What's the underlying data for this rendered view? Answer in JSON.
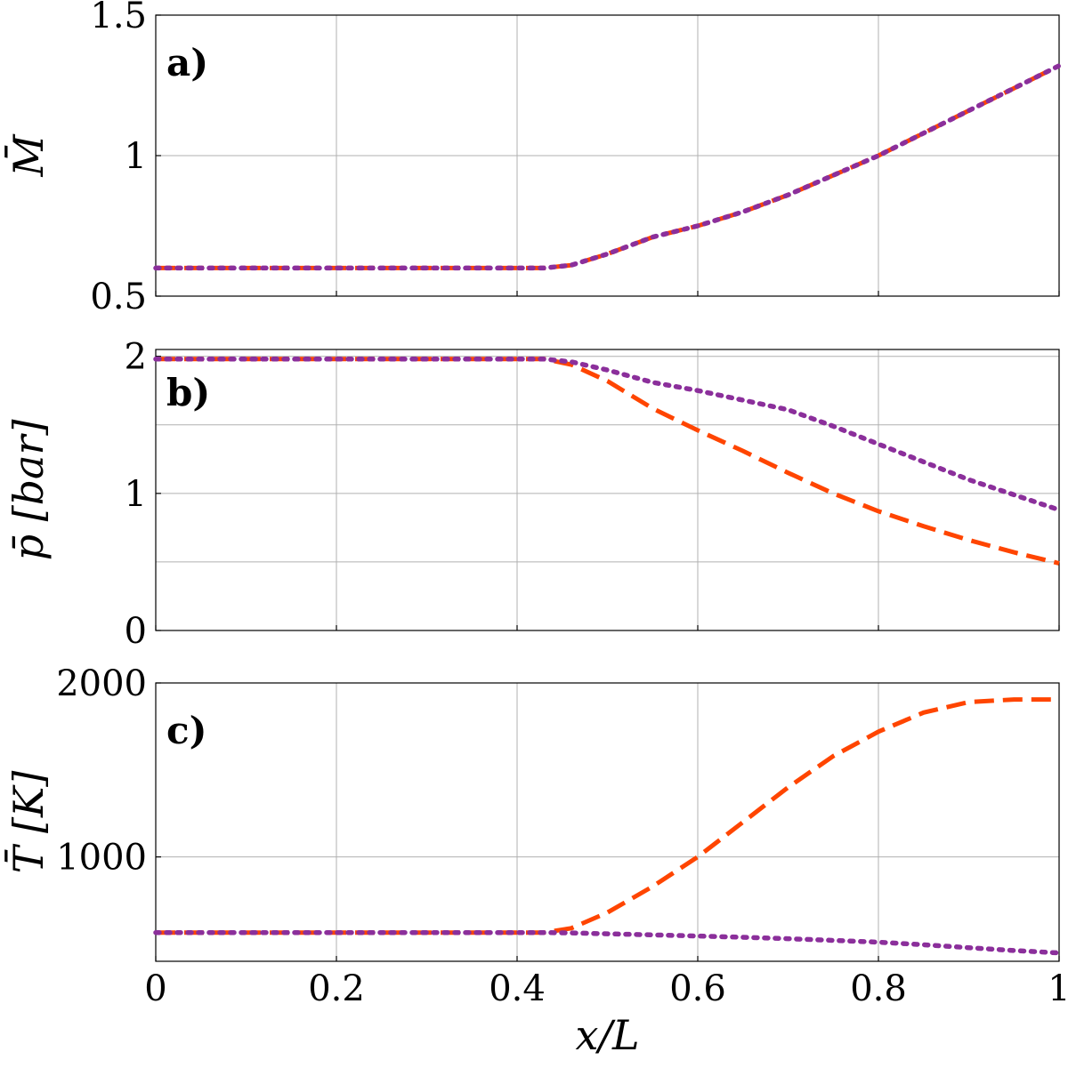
{
  "chart_data": [
    {
      "type": "line",
      "panel_label": "a)",
      "ylabel": "M̄",
      "xlabel": "",
      "xlim": [
        0,
        1
      ],
      "ylim": [
        0.5,
        1.5
      ],
      "xticks": [
        0,
        0.2,
        0.4,
        0.6,
        0.8,
        1
      ],
      "xtick_labels": [
        "",
        "",
        "",
        "",
        "",
        ""
      ],
      "yticks": [
        0.5,
        1,
        1.5
      ],
      "ytick_labels": [
        "0.5",
        "1",
        "1.5"
      ],
      "grid": true,
      "series": [
        {
          "style": "dashed",
          "color": "#ff4500",
          "x": [
            0,
            0.1,
            0.2,
            0.3,
            0.4,
            0.43,
            0.46,
            0.5,
            0.55,
            0.6,
            0.65,
            0.7,
            0.75,
            0.8,
            0.85,
            0.9,
            0.95,
            1.0
          ],
          "y": [
            0.6,
            0.6,
            0.6,
            0.6,
            0.6,
            0.6,
            0.61,
            0.65,
            0.71,
            0.75,
            0.8,
            0.86,
            0.93,
            1.0,
            1.08,
            1.16,
            1.24,
            1.32
          ]
        },
        {
          "style": "dotted",
          "color": "#8b2f9b",
          "x": [
            0,
            0.1,
            0.2,
            0.3,
            0.4,
            0.43,
            0.46,
            0.5,
            0.55,
            0.6,
            0.65,
            0.7,
            0.75,
            0.8,
            0.85,
            0.9,
            0.95,
            1.0
          ],
          "y": [
            0.6,
            0.6,
            0.6,
            0.6,
            0.6,
            0.6,
            0.61,
            0.65,
            0.71,
            0.75,
            0.8,
            0.86,
            0.93,
            1.0,
            1.08,
            1.16,
            1.24,
            1.32
          ]
        }
      ]
    },
    {
      "type": "line",
      "panel_label": "b)",
      "ylabel": "p̄ [bar]",
      "xlabel": "",
      "xlim": [
        0,
        1
      ],
      "ylim": [
        0,
        2.05
      ],
      "xticks": [
        0,
        0.2,
        0.4,
        0.6,
        0.8,
        1
      ],
      "xtick_labels": [
        "",
        "",
        "",
        "",
        "",
        ""
      ],
      "yticks": [
        0,
        1,
        2
      ],
      "ytick_labels": [
        "0",
        "1",
        "2"
      ],
      "minor_gridlines_y": [
        0.5,
        1.5
      ],
      "grid": true,
      "series": [
        {
          "style": "dashed",
          "color": "#ff4500",
          "x": [
            0,
            0.1,
            0.2,
            0.3,
            0.4,
            0.43,
            0.46,
            0.5,
            0.55,
            0.6,
            0.65,
            0.7,
            0.75,
            0.8,
            0.85,
            0.9,
            0.95,
            1.0
          ],
          "y": [
            1.98,
            1.98,
            1.98,
            1.98,
            1.98,
            1.98,
            1.94,
            1.82,
            1.62,
            1.46,
            1.31,
            1.15,
            1.0,
            0.87,
            0.76,
            0.66,
            0.57,
            0.49
          ]
        },
        {
          "style": "dotted",
          "color": "#8b2f9b",
          "x": [
            0,
            0.1,
            0.2,
            0.3,
            0.4,
            0.43,
            0.46,
            0.5,
            0.55,
            0.6,
            0.65,
            0.7,
            0.75,
            0.8,
            0.85,
            0.9,
            0.95,
            1.0
          ],
          "y": [
            1.98,
            1.98,
            1.98,
            1.98,
            1.98,
            1.98,
            1.96,
            1.9,
            1.81,
            1.75,
            1.68,
            1.61,
            1.49,
            1.36,
            1.23,
            1.1,
            0.99,
            0.88
          ]
        }
      ]
    },
    {
      "type": "line",
      "panel_label": "c)",
      "ylabel": "T̄ [K]",
      "xlabel": "x/L",
      "xlim": [
        0,
        1
      ],
      "ylim": [
        400,
        2000
      ],
      "xticks": [
        0,
        0.2,
        0.4,
        0.6,
        0.8,
        1
      ],
      "xtick_labels": [
        "0",
        "0.2",
        "0.4",
        "0.6",
        "0.8",
        "1"
      ],
      "yticks": [
        1000,
        2000
      ],
      "ytick_labels": [
        "1000",
        "2000"
      ],
      "grid": true,
      "series": [
        {
          "style": "dashed",
          "color": "#ff4500",
          "x": [
            0,
            0.1,
            0.2,
            0.3,
            0.4,
            0.43,
            0.46,
            0.5,
            0.55,
            0.6,
            0.65,
            0.7,
            0.75,
            0.8,
            0.85,
            0.9,
            0.95,
            1.0
          ],
          "y": [
            565,
            565,
            565,
            565,
            565,
            565,
            590,
            680,
            830,
            1000,
            1200,
            1400,
            1580,
            1720,
            1830,
            1890,
            1905,
            1905
          ]
        },
        {
          "style": "dotted",
          "color": "#8b2f9b",
          "x": [
            0,
            0.1,
            0.2,
            0.3,
            0.4,
            0.43,
            0.46,
            0.5,
            0.55,
            0.6,
            0.65,
            0.7,
            0.75,
            0.8,
            0.85,
            0.9,
            0.95,
            1.0
          ],
          "y": [
            565,
            565,
            565,
            565,
            565,
            565,
            563,
            558,
            552,
            545,
            538,
            530,
            520,
            510,
            495,
            478,
            462,
            448
          ]
        }
      ]
    }
  ]
}
